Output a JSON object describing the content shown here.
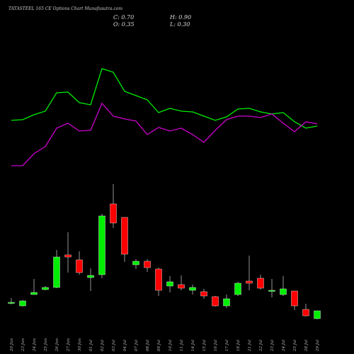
{
  "chart_data": {
    "type": "candlestick",
    "title": "TATASTEEL 165 CE Options  Chart Munafasutra.com",
    "annotations": [
      "C: 0.70",
      "H: 0.90",
      "O: 0.35",
      "L: 0.30"
    ],
    "categories": [
      "20 Jun",
      "23 Jun",
      "24 Jun",
      "25 Jun",
      "26 Jun",
      "27 Jun",
      "30 Jun",
      "01 Jul",
      "02 Jul",
      "03 Jul",
      "04 Jul",
      "07 Jul",
      "08 Jul",
      "09 Jul",
      "10 Jul",
      "11 Jul",
      "14 Jul",
      "15 Jul",
      "16 Jul",
      "17 Jul",
      "18 Jul",
      "21 Jul",
      "22 Jul",
      "23 Jul",
      "24 Jul",
      "25 Jul",
      "28 Jul",
      "29 Jul"
    ],
    "open": [
      0.99,
      0.84,
      1.32,
      1.53,
      1.62,
      3.0,
      2.79,
      2.04,
      2.16,
      5.16,
      4.59,
      2.58,
      2.73,
      2.4,
      1.68,
      1.74,
      1.5,
      1.44,
      1.23,
      0.84,
      1.32,
      1.89,
      2.01,
      1.47,
      1.32,
      1.47,
      0.69,
      0.3
    ],
    "high": [
      1.17,
      1.08,
      1.98,
      1.68,
      3.21,
      3.96,
      3.15,
      2.43,
      4.74,
      6.0,
      4.59,
      2.82,
      2.82,
      2.46,
      2.1,
      2.13,
      1.74,
      1.56,
      1.26,
      1.32,
      1.86,
      2.97,
      2.16,
      1.98,
      2.1,
      1.47,
      0.93,
      0.63
    ],
    "low": [
      0.9,
      0.81,
      1.32,
      1.5,
      1.59,
      2.25,
      2.16,
      1.47,
      2.01,
      4.14,
      2.7,
      2.4,
      2.28,
      1.26,
      1.41,
      1.5,
      1.32,
      1.14,
      0.81,
      0.75,
      1.26,
      1.5,
      1.53,
      1.2,
      1.26,
      0.66,
      0.39,
      0.27
    ],
    "close": [
      0.99,
      1.05,
      1.41,
      1.62,
      2.91,
      2.91,
      2.25,
      2.13,
      4.65,
      4.35,
      3.03,
      2.73,
      2.46,
      1.5,
      1.86,
      1.59,
      1.62,
      1.26,
      0.84,
      1.14,
      1.8,
      1.8,
      1.59,
      1.5,
      1.56,
      0.84,
      0.42,
      0.63
    ],
    "up_color": "#00ee00",
    "down_color": "#ff0000",
    "wick_color": "#bbbbbb",
    "ylim": [
      0,
      8
    ],
    "y2lim": [
      0,
      300
    ],
    "series": [
      {
        "name": null,
        "color": "#00ee00",
        "axis": "y2",
        "values": [
          130,
          131,
          138,
          143,
          169,
          170,
          155,
          152,
          203,
          198,
          171,
          165,
          159,
          141,
          147,
          143,
          142,
          136,
          130,
          135,
          146,
          147,
          142,
          139,
          141,
          128,
          119,
          122
        ]
      },
      {
        "name": null,
        "color": "#cc00cc",
        "axis": "y2",
        "values": [
          66,
          66,
          83,
          93,
          119,
          126,
          115,
          116,
          154,
          136,
          132,
          129,
          110,
          120,
          115,
          119,
          110,
          99,
          116,
          131,
          136,
          136,
          134,
          139,
          126,
          114,
          128,
          125
        ]
      }
    ]
  }
}
